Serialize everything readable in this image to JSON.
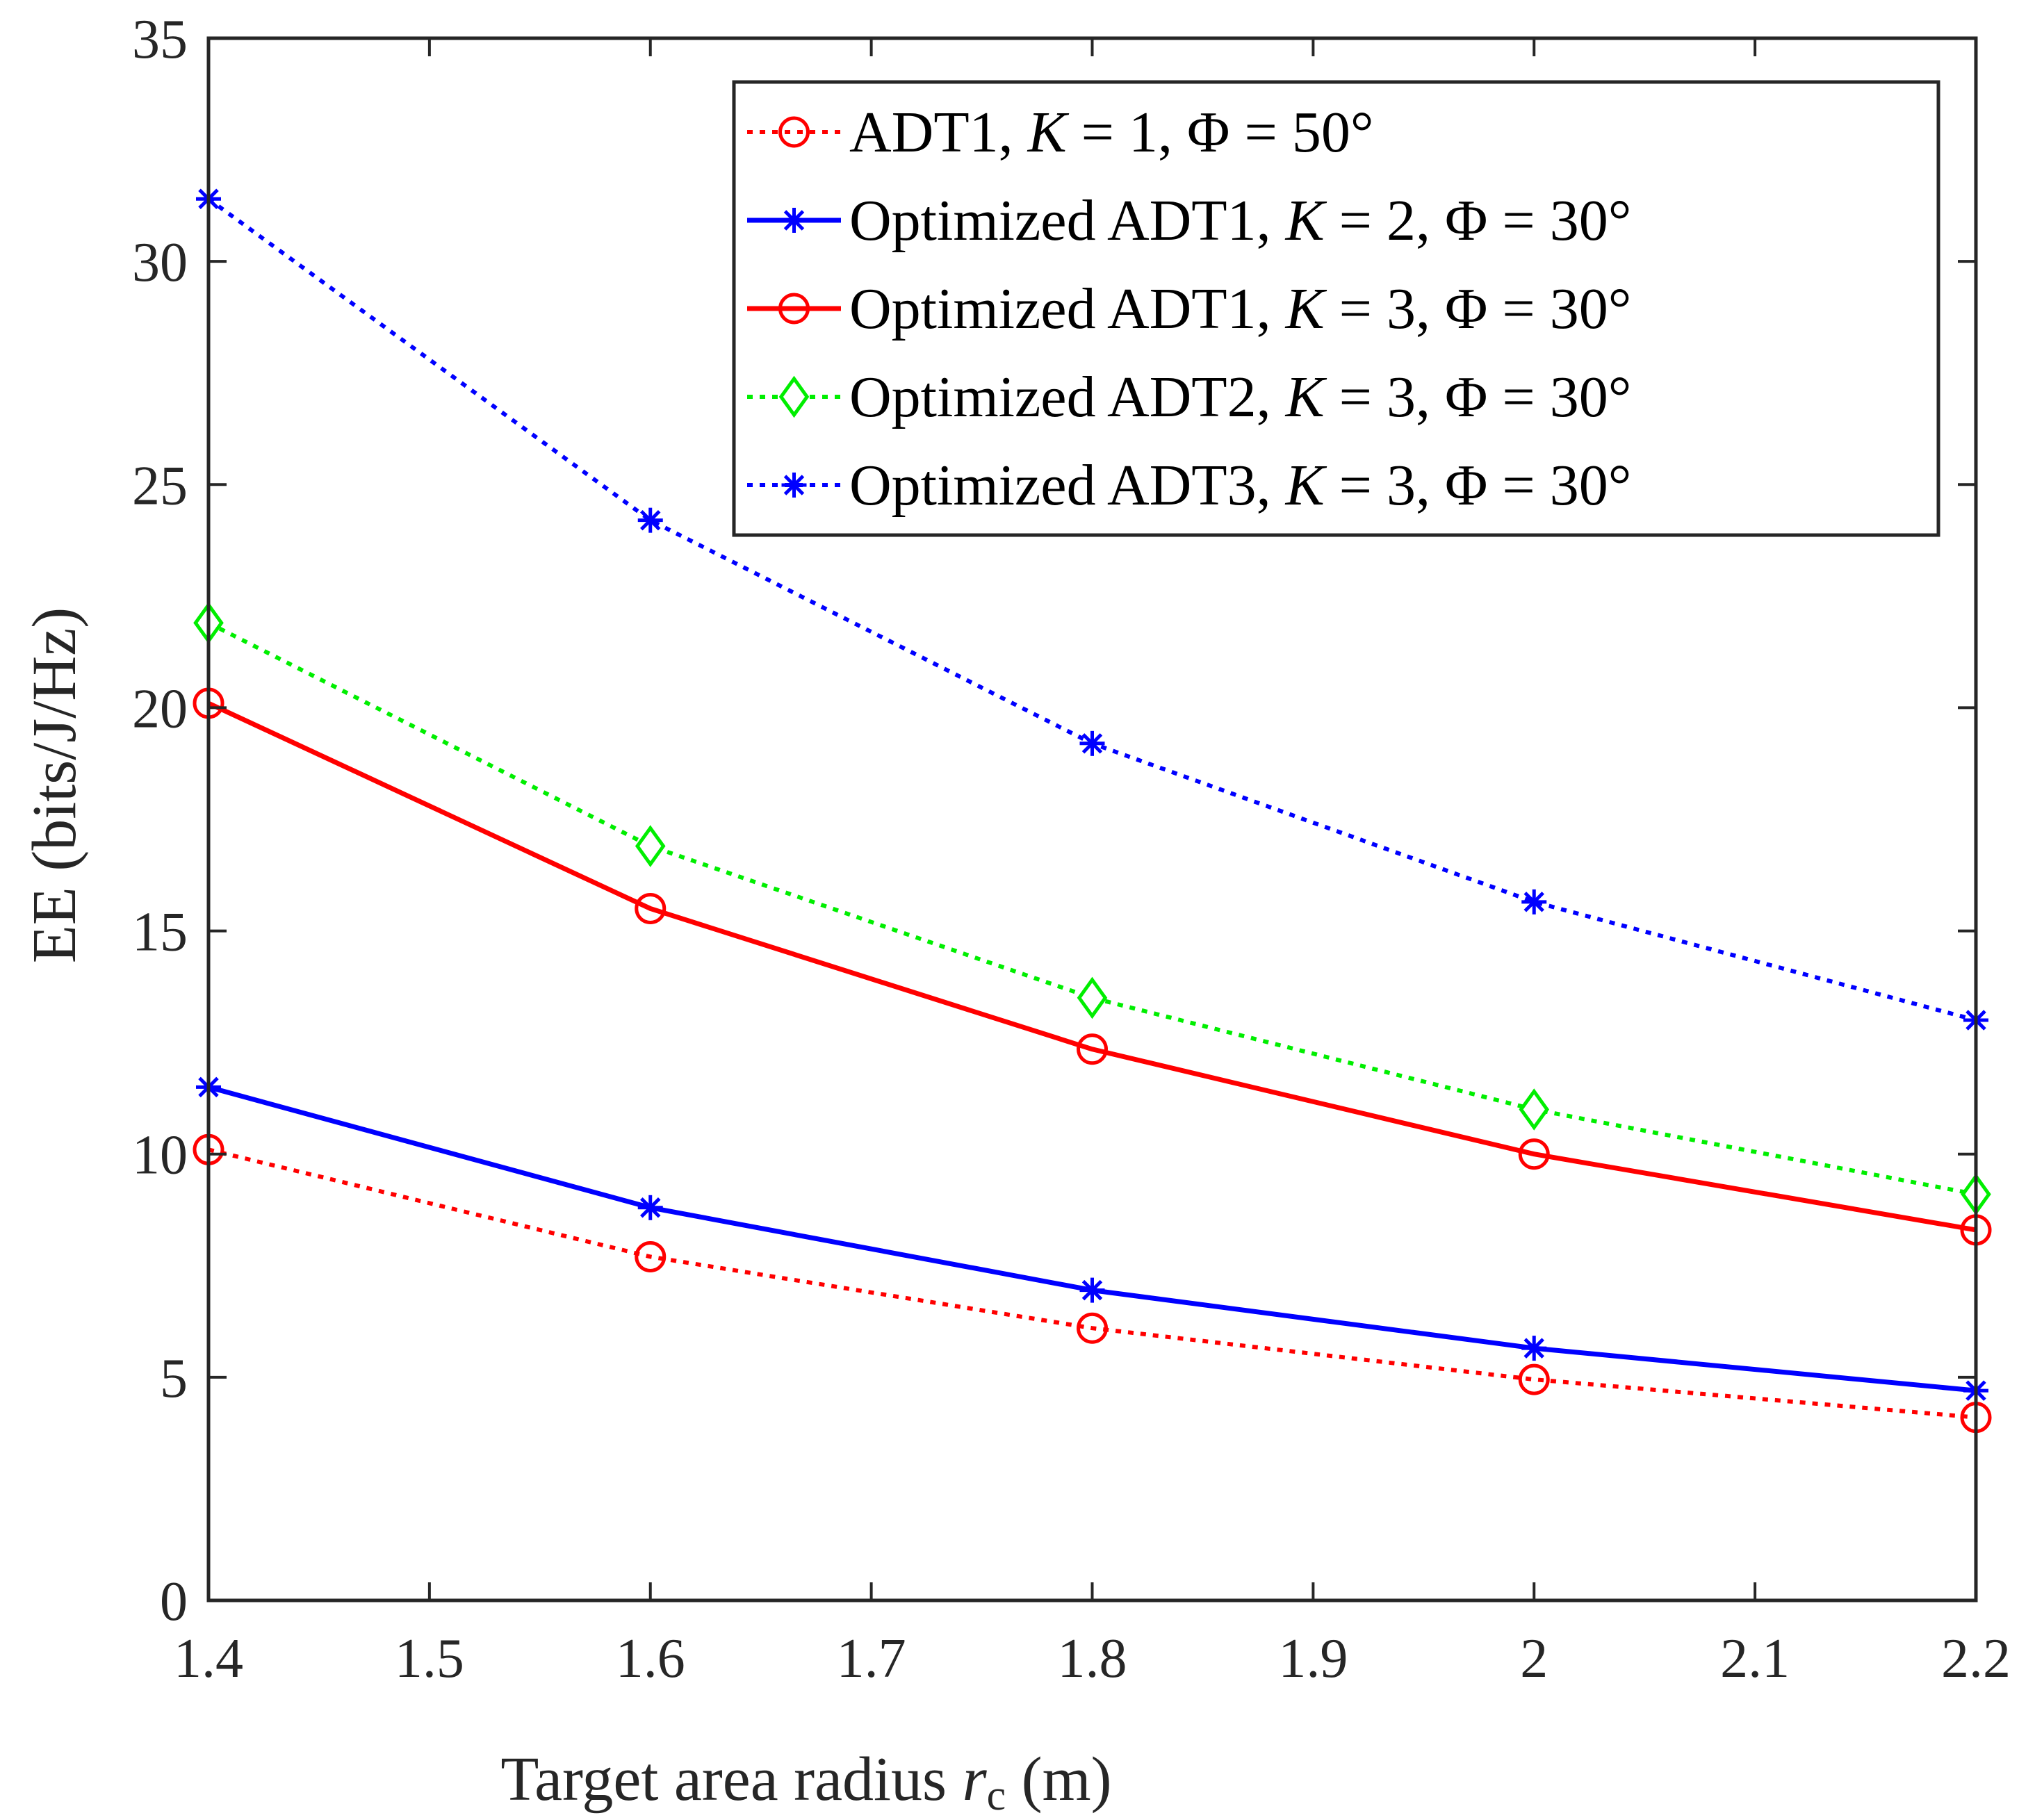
{
  "chart_data": {
    "type": "line",
    "xlabel": "Target area radius",
    "xlabel_var": "r",
    "xlabel_sub": "c",
    "xlabel_unit": "(m)",
    "ylabel": "EE (bits/J/Hz)",
    "xlim": [
      1.4,
      2.2
    ],
    "ylim": [
      0,
      35
    ],
    "xticks": [
      1.4,
      1.5,
      1.6,
      1.7,
      1.8,
      1.9,
      2,
      2.1,
      2.2
    ],
    "yticks": [
      0,
      5,
      10,
      15,
      20,
      25,
      30,
      35
    ],
    "xtick_labels": [
      "1.4",
      "1.5",
      "1.6",
      "1.7",
      "1.8",
      "1.9",
      "2",
      "2.1",
      "2.2"
    ],
    "ytick_labels": [
      "0",
      "5",
      "10",
      "15",
      "20",
      "25",
      "30",
      "35"
    ],
    "grid": false,
    "legend_position": "top-right",
    "x": [
      1.4,
      1.6,
      1.8,
      2.0,
      2.2
    ],
    "series": [
      {
        "name": "ADT1, K = 1, Φ = 50°",
        "color": "#ff0000",
        "dash": "dotted",
        "marker": "circle",
        "legend_parts": [
          "ADT1, ",
          "K",
          " = 1, Φ = 50°"
        ],
        "values": [
          10.1,
          7.7,
          6.1,
          4.95,
          4.1
        ]
      },
      {
        "name": "Optimized ADT1, K = 2, Φ = 30°",
        "color": "#0000ff",
        "dash": "solid",
        "marker": "asterisk",
        "legend_parts": [
          "Optimized ADT1, ",
          "K",
          " = 2, Φ = 30°"
        ],
        "values": [
          11.5,
          8.8,
          6.95,
          5.65,
          4.7
        ]
      },
      {
        "name": "Optimized ADT1, K = 3, Φ = 30°",
        "color": "#ff0000",
        "dash": "solid",
        "marker": "circle",
        "legend_parts": [
          "Optimized ADT1, ",
          "K",
          " = 3, Φ = 30°"
        ],
        "values": [
          20.1,
          15.5,
          12.35,
          10.0,
          8.3
        ]
      },
      {
        "name": "Optimized ADT2, K = 3, Φ = 30°",
        "color": "#00ee00",
        "dash": "dotted",
        "marker": "diamond",
        "legend_parts": [
          "Optimized ADT2, ",
          "K",
          " = 3, Φ = 30°"
        ],
        "values": [
          21.9,
          16.9,
          13.5,
          11.0,
          9.1
        ]
      },
      {
        "name": "Optimized ADT3, K = 3, Φ = 30°",
        "color": "#0000ff",
        "dash": "dotted",
        "marker": "asterisk",
        "legend_parts": [
          "Optimized ADT3, ",
          "K",
          " = 3, Φ = 30°"
        ],
        "values": [
          31.4,
          24.2,
          19.2,
          15.65,
          13.0
        ]
      }
    ]
  }
}
